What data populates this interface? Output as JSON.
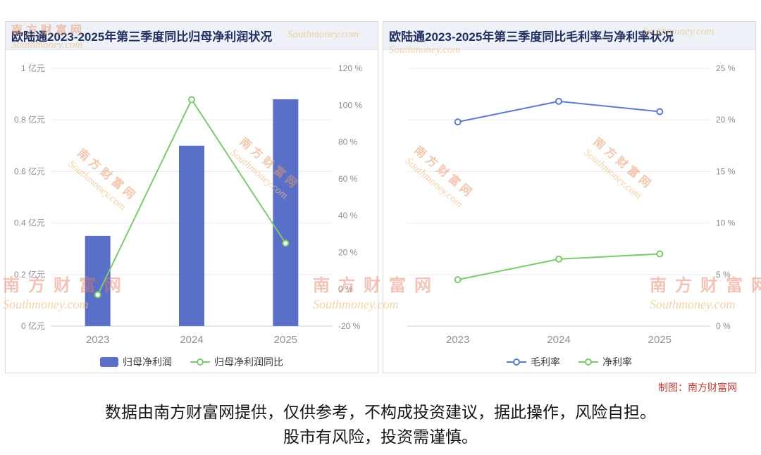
{
  "footer": {
    "credit": "制图：南方财富网",
    "line1": "数据由南方财富网提供，仅供参考，不构成投资建议，据此操作，风险自担。",
    "line2": "股市有风险，投资需谨慎。"
  },
  "watermark": {
    "cn": "南方财富网",
    "en": "Southmoney.com"
  },
  "chart_data": [
    {
      "type": "bar+line",
      "title": "欧陆通2023-2025年第三季度同比归母净利润状况",
      "categories": [
        "2023",
        "2024",
        "2025"
      ],
      "grid_axis": "left",
      "legend_position": "bottom",
      "axes": {
        "left": {
          "min": 0,
          "max": 1,
          "step": 0.2,
          "suffix": " 亿元"
        },
        "right": {
          "min": -20,
          "max": 120,
          "step": 20,
          "suffix": " %"
        }
      },
      "series": [
        {
          "name": "归母净利润",
          "type": "bar",
          "axis": "left",
          "color": "#5a6fc8",
          "values": [
            0.35,
            0.7,
            0.88
          ]
        },
        {
          "name": "归母净利润同比",
          "type": "line",
          "axis": "right",
          "color": "#7dc96d",
          "values": [
            -3,
            103,
            25
          ]
        }
      ]
    },
    {
      "type": "line",
      "title": "欧陆通2023-2025年第三季度同比毛利率与净利率状况",
      "categories": [
        "2023",
        "2024",
        "2025"
      ],
      "grid_axis": "right",
      "legend_position": "bottom",
      "axes": {
        "right": {
          "min": 0,
          "max": 25,
          "step": 5,
          "suffix": " %"
        }
      },
      "series": [
        {
          "name": "毛利率",
          "type": "line",
          "axis": "right",
          "color": "#5b7bd2",
          "values": [
            19.8,
            21.8,
            20.8
          ]
        },
        {
          "name": "净利率",
          "type": "line",
          "axis": "right",
          "color": "#7dc96d",
          "values": [
            4.5,
            6.5,
            7.0
          ]
        }
      ]
    }
  ]
}
